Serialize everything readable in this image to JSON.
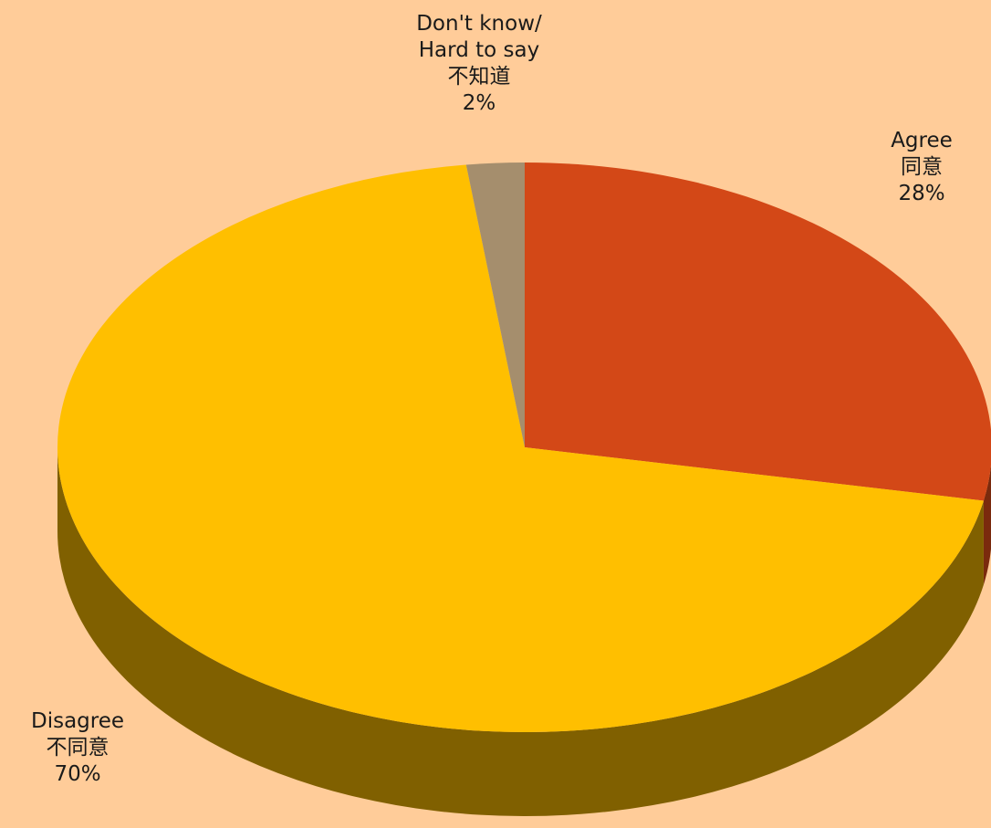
{
  "chart_data": {
    "type": "pie",
    "variant": "3d",
    "title": "",
    "legend": "none",
    "slices": [
      {
        "label": "Agree",
        "label_zh": "同意",
        "value": 28,
        "value_label": "28%",
        "color": "#D34817",
        "side_color": "#7A2A0D"
      },
      {
        "label": "Disagree",
        "label_zh": "不同意",
        "value": 70,
        "value_label": "70%",
        "color": "#FFBF00",
        "side_color": "#806000"
      },
      {
        "label": "Don't know/\nHard to say",
        "label_zh": "不知道",
        "value": 2,
        "value_label": "2%",
        "color": "#A58E6D",
        "side_color": "#5E4F3A"
      }
    ]
  },
  "labels": {
    "agree": {
      "line1": "Agree",
      "line2": "同意",
      "line3": "28%"
    },
    "disagree": {
      "line1": "Disagree",
      "line2": "不同意",
      "line3": "70%"
    },
    "dontknow": {
      "line1": "Don't know/",
      "line2": "Hard to say",
      "line3": "不知道",
      "line4": "2%"
    }
  },
  "colors": {
    "background": "#FFCC99"
  }
}
